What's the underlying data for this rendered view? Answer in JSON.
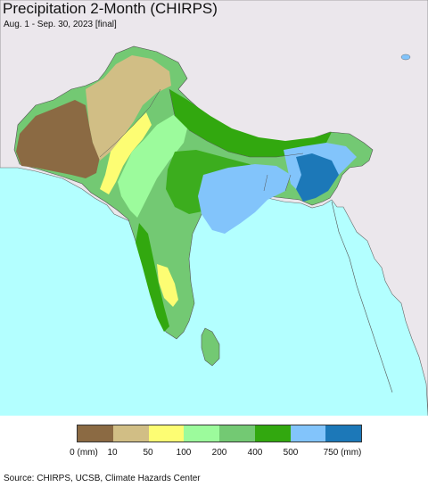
{
  "title": "Precipitation 2-Month (CHIRPS)",
  "subtitle": "Aug. 1 - Sep. 30, 2023 [final]",
  "legend": {
    "colors": [
      "#8b6a43",
      "#d1be85",
      "#fdfd73",
      "#9cfb9c",
      "#73c973",
      "#32a80f",
      "#82c4fb",
      "#1c78b8"
    ],
    "ticks": [
      "0 (mm)",
      "10",
      "50",
      "100",
      "200",
      "400",
      "500",
      "750 (mm)"
    ]
  },
  "source": "Source: CHIRPS, UCSB, Climate Hazards Center",
  "map_colors": {
    "ocean": "#b3ffff",
    "land_outside": "#ebe7ec",
    "border": "#555555"
  }
}
